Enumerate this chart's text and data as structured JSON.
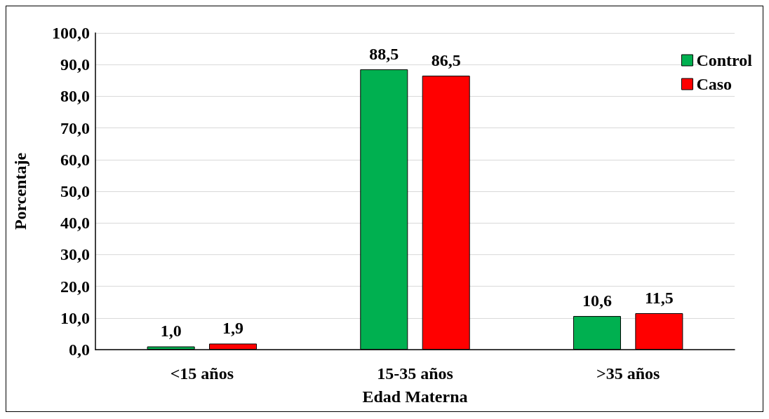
{
  "chart_data": {
    "type": "bar",
    "xlabel": "Edad Materna",
    "ylabel": "Porcentaje",
    "categories": [
      "<15 años",
      "15-35 años",
      ">35 años"
    ],
    "series": [
      {
        "name": "Control",
        "color": "#00b050",
        "values": [
          1.0,
          88.5,
          10.6
        ],
        "value_labels": [
          "1,0",
          "88,5",
          "10,6"
        ]
      },
      {
        "name": "Caso",
        "color": "#ff0000",
        "values": [
          1.9,
          86.5,
          11.5
        ],
        "value_labels": [
          "1,9",
          "86,5",
          "11,5"
        ]
      }
    ],
    "ylim": [
      0,
      100
    ],
    "yticks": [
      {
        "value": 0,
        "label": "0,0"
      },
      {
        "value": 10,
        "label": "10,0"
      },
      {
        "value": 20,
        "label": "20,0"
      },
      {
        "value": 30,
        "label": "30,0"
      },
      {
        "value": 40,
        "label": "40,0"
      },
      {
        "value": 50,
        "label": "50,0"
      },
      {
        "value": 60,
        "label": "60,0"
      },
      {
        "value": 70,
        "label": "70,0"
      },
      {
        "value": 80,
        "label": "80,0"
      },
      {
        "value": 90,
        "label": "90,0"
      },
      {
        "value": 100,
        "label": "100,0"
      }
    ],
    "grid": "y",
    "legend": "top right"
  }
}
